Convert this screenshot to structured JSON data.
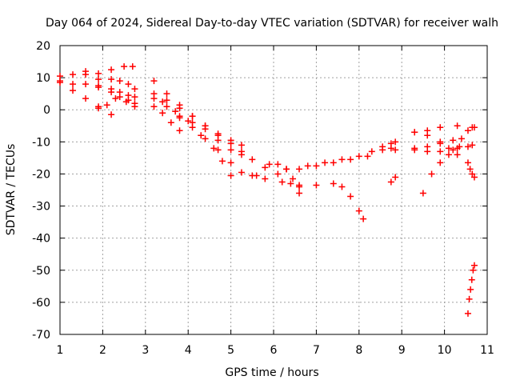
{
  "chart_data": {
    "type": "scatter",
    "title": "Day 064 of 2024, Sidereal Day-to-day VTEC variation (SDTVAR) for receiver walh",
    "xlabel": "GPS time / hours",
    "ylabel": "SDTVAR / TECUs",
    "xlim": [
      1,
      11
    ],
    "ylim": [
      -70,
      20
    ],
    "x_ticks": [
      "1",
      "2",
      "3",
      "4",
      "5",
      "6",
      "7",
      "8",
      "9",
      "10",
      "11"
    ],
    "y_ticks": [
      "20",
      "10",
      "0",
      "-10",
      "-20",
      "-30",
      "-40",
      "-50",
      "-60",
      "-70"
    ],
    "grid": true,
    "marker": "plus",
    "color": "#ff0000",
    "series": [
      {
        "points": [
          [
            1.0,
            10.5
          ],
          [
            1.3,
            11.0
          ],
          [
            1.6,
            11.0
          ],
          [
            1.9,
            11.3
          ],
          [
            2.2,
            12.5
          ],
          [
            2.5,
            13.5
          ],
          [
            2.7,
            13.5
          ]
        ]
      },
      {
        "points": [
          [
            1.0,
            8.5
          ],
          [
            1.3,
            8.0
          ],
          [
            1.6,
            8.0
          ],
          [
            1.9,
            7.5
          ],
          [
            2.2,
            6.5
          ],
          [
            2.4,
            5.5
          ],
          [
            2.6,
            4.5
          ],
          [
            2.75,
            4.0
          ]
        ]
      },
      {
        "points": [
          [
            1.0,
            9.0
          ],
          [
            1.3,
            6.0
          ],
          [
            1.6,
            3.5
          ],
          [
            1.9,
            1.0
          ],
          [
            2.2,
            -1.5
          ]
        ]
      },
      {
        "points": [
          [
            1.6,
            12.0
          ],
          [
            1.9,
            9.5
          ],
          [
            2.2,
            9.5
          ],
          [
            2.4,
            9.0
          ],
          [
            2.6,
            8.0
          ],
          [
            2.75,
            6.5
          ]
        ]
      },
      {
        "points": [
          [
            1.9,
            7.0
          ],
          [
            2.2,
            5.5
          ],
          [
            2.4,
            4.0
          ],
          [
            2.6,
            3.0
          ],
          [
            2.75,
            2.0
          ]
        ]
      },
      {
        "points": [
          [
            1.9,
            0.5
          ],
          [
            2.1,
            1.5
          ],
          [
            2.3,
            3.5
          ],
          [
            2.55,
            2.5
          ],
          [
            2.75,
            1.0
          ]
        ]
      },
      {
        "points": [
          [
            3.2,
            9.0
          ],
          [
            3.5,
            5.0
          ],
          [
            3.8,
            1.5
          ],
          [
            4.1,
            -2.0
          ],
          [
            4.4,
            -5.0
          ],
          [
            4.7,
            -8.0
          ],
          [
            5.0,
            -10.5
          ],
          [
            5.25,
            -13.0
          ]
        ]
      },
      {
        "points": [
          [
            3.2,
            5.0
          ],
          [
            3.5,
            3.0
          ],
          [
            3.8,
            0.5
          ],
          [
            4.1,
            -2.0
          ],
          [
            4.4,
            -5.0
          ],
          [
            4.7,
            -7.5
          ],
          [
            5.0,
            -9.5
          ],
          [
            5.25,
            -11.0
          ]
        ]
      },
      {
        "points": [
          [
            3.2,
            3.5
          ],
          [
            3.5,
            1.0
          ],
          [
            3.8,
            -2.0
          ],
          [
            4.1,
            -5.5
          ],
          [
            4.4,
            -9.0
          ],
          [
            4.7,
            -12.5
          ],
          [
            5.0,
            -16.5
          ],
          [
            5.25,
            -19.5
          ]
        ]
      },
      {
        "points": [
          [
            3.2,
            1.0
          ],
          [
            3.4,
            -1.0
          ],
          [
            3.6,
            -4.0
          ],
          [
            3.8,
            -6.5
          ]
        ]
      },
      {
        "points": [
          [
            3.4,
            2.5
          ],
          [
            3.7,
            -0.5
          ],
          [
            4.0,
            -3.5
          ],
          [
            4.3,
            -8.0
          ],
          [
            4.6,
            -12.0
          ],
          [
            4.8,
            -16.0
          ],
          [
            5.0,
            -20.5
          ]
        ]
      },
      {
        "points": [
          [
            3.8,
            -2.5
          ],
          [
            4.1,
            -4.0
          ],
          [
            4.4,
            -6.0
          ],
          [
            4.7,
            -9.5
          ],
          [
            5.0,
            -12.5
          ],
          [
            5.25,
            -14.0
          ]
        ]
      },
      {
        "points": [
          [
            5.5,
            -15.5
          ],
          [
            5.8,
            -18.0
          ],
          [
            6.1,
            -20.0
          ],
          [
            6.4,
            -23.0
          ],
          [
            6.6,
            -26.0
          ]
        ]
      },
      {
        "points": [
          [
            5.5,
            -20.5
          ],
          [
            5.8,
            -21.5
          ],
          [
            6.2,
            -22.5
          ],
          [
            6.6,
            -23.5
          ],
          [
            7.0,
            -23.5
          ],
          [
            7.4,
            -23.0
          ],
          [
            7.6,
            -24.0
          ],
          [
            7.8,
            -27.0
          ],
          [
            8.0,
            -31.5
          ],
          [
            8.1,
            -34.0
          ]
        ]
      },
      {
        "points": [
          [
            5.6,
            -20.5
          ],
          [
            5.9,
            -17.0
          ],
          [
            6.1,
            -17.0
          ],
          [
            6.3,
            -18.5
          ],
          [
            6.45,
            -21.5
          ],
          [
            6.6,
            -24.0
          ]
        ]
      },
      {
        "points": [
          [
            6.3,
            -18.5
          ],
          [
            6.8,
            -17.5
          ],
          [
            7.2,
            -16.5
          ],
          [
            7.6,
            -15.5
          ],
          [
            8.0,
            -14.5
          ],
          [
            8.3,
            -13.0
          ],
          [
            8.55,
            -11.5
          ]
        ]
      },
      {
        "points": [
          [
            6.6,
            -18.5
          ],
          [
            7.0,
            -17.5
          ],
          [
            7.4,
            -16.5
          ],
          [
            7.8,
            -15.5
          ],
          [
            8.2,
            -14.5
          ],
          [
            8.55,
            -12.5
          ]
        ]
      },
      {
        "points": [
          [
            8.75,
            -10.5
          ],
          [
            8.85,
            -10.0
          ]
        ]
      },
      {
        "points": [
          [
            8.75,
            -12.0
          ],
          [
            8.85,
            -12.5
          ]
        ]
      },
      {
        "points": [
          [
            8.75,
            -22.5
          ],
          [
            8.85,
            -21.0
          ]
        ]
      },
      {
        "points": [
          [
            9.3,
            -7.0
          ],
          [
            9.6,
            -6.5
          ],
          [
            9.9,
            -5.5
          ],
          [
            10.3,
            -5.0
          ],
          [
            10.7,
            -5.5
          ]
        ]
      },
      {
        "points": [
          [
            9.3,
            -12.0
          ],
          [
            9.6,
            -11.5
          ],
          [
            9.9,
            -10.5
          ],
          [
            10.2,
            -9.5
          ],
          [
            10.4,
            -9.0
          ]
        ]
      },
      {
        "points": [
          [
            9.3,
            -7.0
          ],
          [
            9.6,
            -8.0
          ],
          [
            9.9,
            -10.0
          ],
          [
            10.1,
            -12.0
          ],
          [
            10.3,
            -14.0
          ]
        ]
      },
      {
        "points": [
          [
            9.3,
            -12.5
          ],
          [
            9.6,
            -13.0
          ],
          [
            9.9,
            -13.0
          ],
          [
            10.2,
            -12.5
          ],
          [
            10.35,
            -11.5
          ]
        ]
      },
      {
        "points": [
          [
            9.5,
            -26.0
          ],
          [
            9.7,
            -20.0
          ],
          [
            9.9,
            -16.5
          ],
          [
            10.1,
            -14.0
          ],
          [
            10.3,
            -12.0
          ]
        ]
      },
      {
        "points": [
          [
            10.55,
            -6.5
          ],
          [
            10.65,
            -5.5
          ]
        ]
      },
      {
        "points": [
          [
            10.55,
            -11.5
          ],
          [
            10.65,
            -11.0
          ]
        ]
      },
      {
        "points": [
          [
            10.55,
            -16.5
          ],
          [
            10.6,
            -18.5
          ],
          [
            10.65,
            -20.0
          ],
          [
            10.7,
            -21.0
          ]
        ]
      },
      {
        "points": [
          [
            10.55,
            -63.5
          ],
          [
            10.58,
            -59.0
          ],
          [
            10.61,
            -56.0
          ],
          [
            10.64,
            -53.0
          ],
          [
            10.67,
            -50.0
          ],
          [
            10.7,
            -48.5
          ]
        ]
      }
    ]
  }
}
